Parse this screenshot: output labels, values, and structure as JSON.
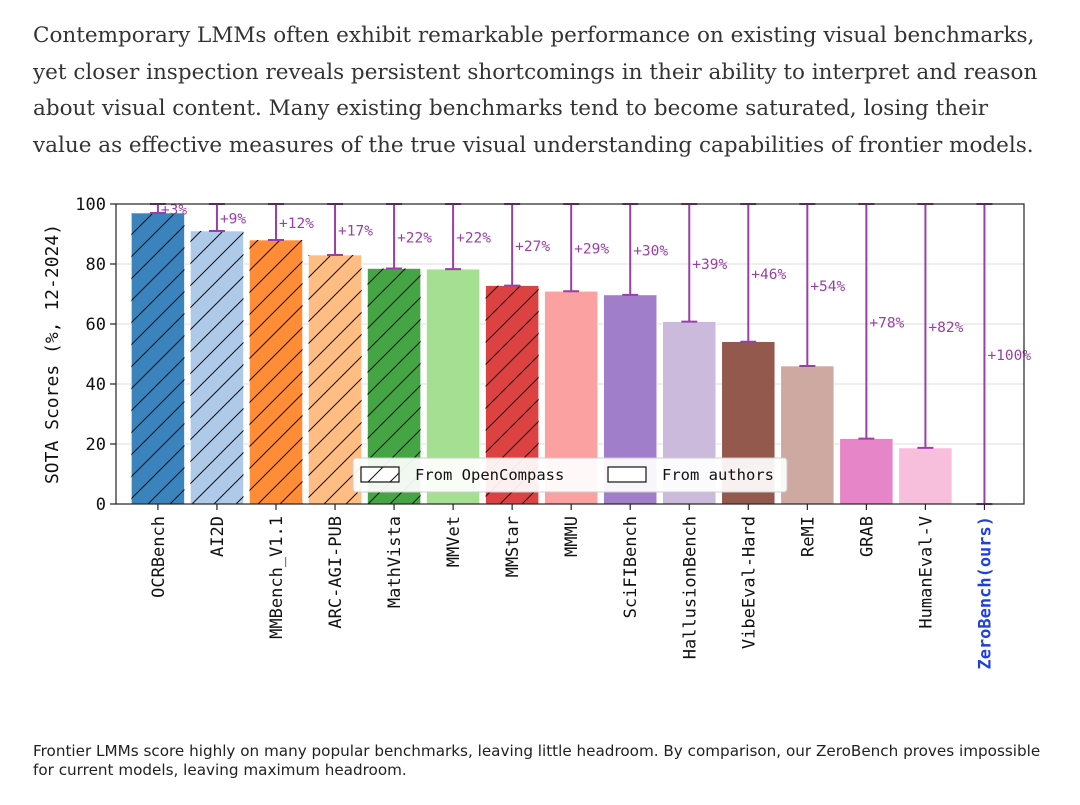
{
  "intro_text": "Contemporary LMMs often exhibit remarkable performance on existing visual benchmarks, yet closer inspection reveals persistent shortcomings in their ability to interpret and reason about visual content. Many existing benchmarks tend to become saturated, losing their value as effective measures of the true visual understanding capabilities of frontier models.",
  "caption_text": "Frontier LMMs score highly on many popular benchmarks, leaving little headroom. By comparison, our ZeroBench proves impossible for current models, leaving maximum headroom.",
  "chart_data": {
    "type": "bar",
    "title": "",
    "xlabel": "",
    "ylabel": "SOTA Scores (%, 12-2024)",
    "ylim": [
      0,
      100
    ],
    "yticks": [
      0,
      20,
      40,
      60,
      80,
      100
    ],
    "grid": true,
    "categories": [
      "OCRBench",
      "AI2D",
      "MMBench_V1.1",
      "ARC-AGI-PUB",
      "MathVista",
      "MMVet",
      "MMStar",
      "MMMU",
      "SciFIBench",
      "HallusionBench",
      "VibeEval-Hard",
      "ReMI",
      "GRAB",
      "HumanEval-V",
      "ZeroBench(ours)"
    ],
    "values": [
      97,
      91,
      88,
      83,
      78.5,
      78.3,
      72.8,
      70.9,
      69.7,
      60.8,
      54.1,
      46,
      21.8,
      18.7,
      0
    ],
    "headroom_labels": [
      "+3%",
      "+9%",
      "+12%",
      "+17%",
      "+22%",
      "+22%",
      "+27%",
      "+29%",
      "+30%",
      "+39%",
      "+46%",
      "+54%",
      "+78%",
      "+82%",
      "+100%"
    ],
    "sources": [
      "OpenCompass",
      "OpenCompass",
      "OpenCompass",
      "OpenCompass",
      "OpenCompass",
      "authors",
      "OpenCompass",
      "authors",
      "authors",
      "authors",
      "authors",
      "authors",
      "authors",
      "authors",
      "authors"
    ],
    "colors": [
      "#3a83bd",
      "#afc9e8",
      "#ff8c36",
      "#ffbd83",
      "#45a443",
      "#a4df92",
      "#dd4242",
      "#fca1a1",
      "#a07ec9",
      "#cbbadb",
      "#94594d",
      "#cda9a2",
      "#e686c9",
      "#f8bfdc",
      "#f8bfdc"
    ],
    "highlight_category": "ZeroBench(ours)",
    "highlight_color": "#1f3fe0",
    "headroom_color": "#9b3fa8",
    "legend": {
      "position": "bottom-center",
      "items": [
        {
          "label": "From OpenCompass",
          "pattern": "hatched"
        },
        {
          "label": "From authors",
          "pattern": "plain"
        }
      ]
    }
  }
}
